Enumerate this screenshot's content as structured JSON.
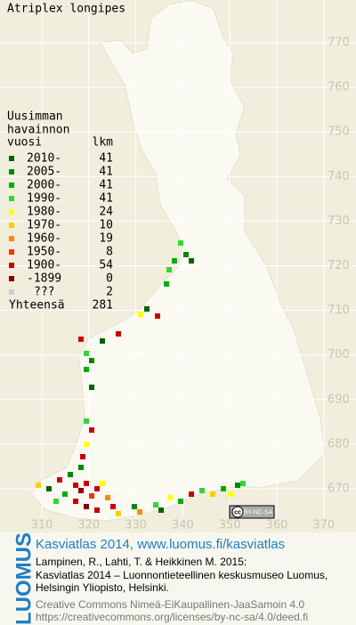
{
  "header": {
    "title": "Atriplex longipes"
  },
  "legend": {
    "heading": [
      "Uusimman",
      "havainnon",
      "vuosi"
    ],
    "count_heading": "lkm",
    "rows": [
      {
        "label": "2010-",
        "count": 41,
        "color": "#006400"
      },
      {
        "label": "2005-",
        "count": 41,
        "color": "#008a00"
      },
      {
        "label": "2000-",
        "count": 41,
        "color": "#00b000"
      },
      {
        "label": "1990-",
        "count": 41,
        "color": "#33d633"
      },
      {
        "label": "1980-",
        "count": 24,
        "color": "#ffff00"
      },
      {
        "label": "1970-",
        "count": 10,
        "color": "#ffcc00"
      },
      {
        "label": "1960-",
        "count": 19,
        "color": "#ff8800"
      },
      {
        "label": "1950-",
        "count": 8,
        "color": "#ff3300"
      },
      {
        "label": "1900-",
        "count": 54,
        "color": "#cc0000"
      },
      {
        "label": "-1899",
        "count": 0,
        "color": "#880000"
      },
      {
        "label": "???",
        "count": 2,
        "color": "#cccccc"
      }
    ],
    "total_label": "Yhteensä",
    "total": 281
  },
  "map": {
    "y_labels": [
      770,
      760,
      750,
      740,
      730,
      720,
      710,
      700,
      690,
      680,
      670
    ],
    "x_labels": [
      310,
      320,
      330,
      340,
      350,
      360,
      370
    ]
  },
  "license": {
    "icon": "cc",
    "text": "BY-NC-SA"
  },
  "footer": {
    "logo": "LUOMUS",
    "title": "Kasviatlas 2014, www.luomus.fi/kasviatlas",
    "citation": [
      "Lampinen, R., Lahti, T. & Heikkinen M. 2015:",
      "Kasviatlas 2014 – Luonnontieteellinen keskusmuseo Luomus,",
      "Helsingin Yliopisto, Helsinki."
    ],
    "license": [
      "Creative Commons Nimeä-EiKaupallinen-JaaSamoin 4.0",
      "https://creativecommons.org/licenses/by-nc-sa/4.0/deed.fi"
    ]
  }
}
